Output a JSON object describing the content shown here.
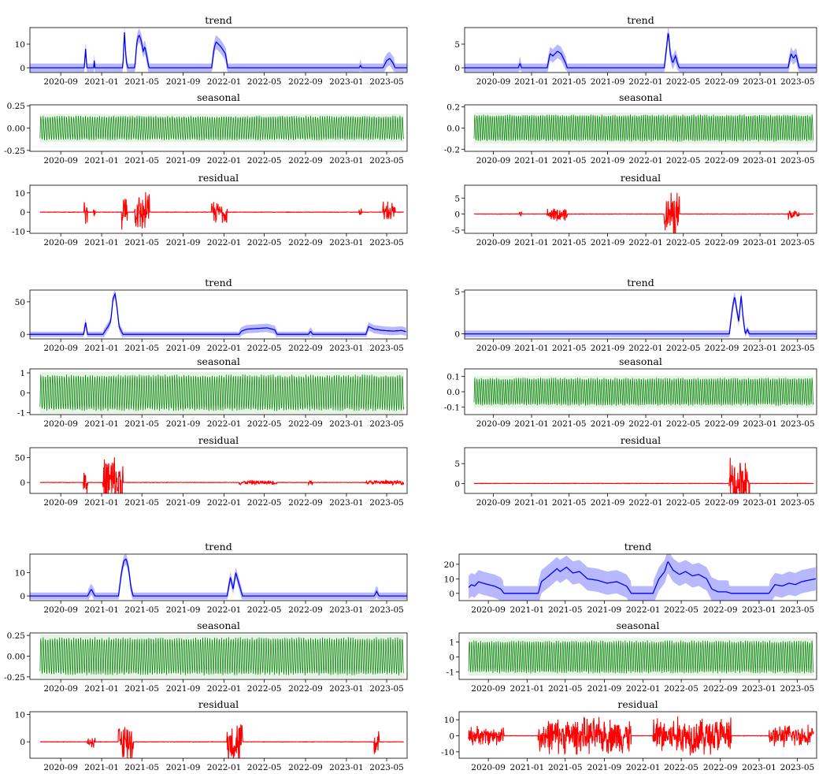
{
  "colors": {
    "trend": "#0000ff",
    "band": "#b8b8ff",
    "seasonal": "#008000",
    "seasonal_light": "#9ad29a",
    "residual": "#ff0000",
    "axis": "#000000"
  },
  "x_tick_labels": [
    "2020-09",
    "2021-01",
    "2021-05",
    "2021-09",
    "2022-01",
    "2022-05",
    "2022-09",
    "2023-01",
    "2023-05"
  ],
  "chart_data": [
    {
      "type": "line",
      "panel": "top-left",
      "x_range": [
        "2020-06-01",
        "2023-07-01"
      ],
      "trend": {
        "title": "trend",
        "ylim": [
          -2,
          17
        ],
        "yticks": [
          "0",
          "10"
        ],
        "ytick_values": [
          0,
          10
        ],
        "band_halfwidth": 1.8,
        "points": [
          [
            "2020-06-01",
            0
          ],
          [
            "2020-11-10",
            0
          ],
          [
            "2020-11-14",
            8
          ],
          [
            "2020-11-18",
            0
          ],
          [
            "2020-12-08",
            0
          ],
          [
            "2020-12-10",
            3
          ],
          [
            "2020-12-12",
            0
          ],
          [
            "2021-03-05",
            0
          ],
          [
            "2021-03-10",
            15
          ],
          [
            "2021-03-15",
            3
          ],
          [
            "2021-03-20",
            0
          ],
          [
            "2021-04-10",
            0
          ],
          [
            "2021-04-16",
            11
          ],
          [
            "2021-04-22",
            14
          ],
          [
            "2021-04-28",
            12
          ],
          [
            "2021-05-05",
            7
          ],
          [
            "2021-05-10",
            9
          ],
          [
            "2021-05-18",
            3
          ],
          [
            "2021-05-22",
            0
          ],
          [
            "2021-11-25",
            0
          ],
          [
            "2021-12-02",
            8
          ],
          [
            "2021-12-08",
            11
          ],
          [
            "2021-12-15",
            10
          ],
          [
            "2021-12-22",
            9
          ],
          [
            "2022-01-05",
            6
          ],
          [
            "2022-01-12",
            0
          ],
          [
            "2023-02-08",
            0
          ],
          [
            "2023-02-12",
            1
          ],
          [
            "2023-02-16",
            0
          ],
          [
            "2023-04-20",
            0
          ],
          [
            "2023-05-01",
            3
          ],
          [
            "2023-05-10",
            4
          ],
          [
            "2023-05-20",
            2
          ],
          [
            "2023-05-26",
            0
          ],
          [
            "2023-07-01",
            0
          ]
        ]
      },
      "seasonal": {
        "title": "seasonal",
        "ylim": [
          -0.26,
          0.26
        ],
        "yticks": [
          "0.25",
          "0.00",
          "-0.25"
        ],
        "ytick_values": [
          0.25,
          0,
          -0.25
        ],
        "amplitude": 0.15
      },
      "residual": {
        "title": "residual",
        "ylim": [
          -11,
          14
        ],
        "yticks": [
          "10",
          "0",
          "-10"
        ],
        "ytick_values": [
          10,
          0,
          -10
        ],
        "bursts": [
          [
            "2020-11-10",
            "2020-11-20",
            7
          ],
          [
            "2020-12-08",
            "2020-12-12",
            4
          ],
          [
            "2021-03-02",
            "2021-03-18",
            10
          ],
          [
            "2021-04-10",
            "2021-05-24",
            12
          ],
          [
            "2021-11-25",
            "2022-01-12",
            7
          ],
          [
            "2023-02-08",
            "2023-02-16",
            3
          ],
          [
            "2023-04-20",
            "2023-05-26",
            7
          ]
        ]
      }
    },
    {
      "type": "line",
      "panel": "top-right",
      "x_range": [
        "2020-06-01",
        "2023-07-01"
      ],
      "trend": {
        "title": "trend",
        "ylim": [
          -1,
          8.5
        ],
        "yticks": [
          "0",
          "5"
        ],
        "ytick_values": [
          0,
          5
        ],
        "band_halfwidth": 0.9,
        "points": [
          [
            "2020-06-01",
            0
          ],
          [
            "2020-11-20",
            0
          ],
          [
            "2020-11-25",
            1
          ],
          [
            "2020-11-30",
            0
          ],
          [
            "2021-02-20",
            0
          ],
          [
            "2021-03-01",
            3
          ],
          [
            "2021-03-10",
            2.5
          ],
          [
            "2021-03-25",
            3.5
          ],
          [
            "2021-04-05",
            3
          ],
          [
            "2021-04-20",
            1
          ],
          [
            "2021-04-25",
            0
          ],
          [
            "2022-03-01",
            0
          ],
          [
            "2022-03-08",
            4
          ],
          [
            "2022-03-14",
            7.8
          ],
          [
            "2022-03-20",
            3
          ],
          [
            "2022-03-28",
            1
          ],
          [
            "2022-04-06",
            2.5
          ],
          [
            "2022-04-12",
            1
          ],
          [
            "2022-04-18",
            0
          ],
          [
            "2023-04-01",
            0
          ],
          [
            "2023-04-10",
            3
          ],
          [
            "2023-04-18",
            2
          ],
          [
            "2023-04-26",
            2.8
          ],
          [
            "2023-05-06",
            0
          ],
          [
            "2023-07-01",
            0
          ]
        ]
      },
      "seasonal": {
        "title": "seasonal",
        "ylim": [
          -0.22,
          0.22
        ],
        "yticks": [
          "0.2",
          "0.0",
          "-0.2"
        ],
        "ytick_values": [
          0.2,
          0,
          -0.2
        ],
        "amplitude": 0.14
      },
      "residual": {
        "title": "residual",
        "ylim": [
          -6,
          9
        ],
        "yticks": [
          "5",
          "0",
          "-5"
        ],
        "ytick_values": [
          5,
          0,
          -5
        ],
        "bursts": [
          [
            "2020-11-20",
            "2020-11-30",
            1
          ],
          [
            "2021-02-20",
            "2021-04-25",
            2.5
          ],
          [
            "2022-03-01",
            "2022-04-18",
            8
          ],
          [
            "2023-04-01",
            "2023-05-06",
            2
          ]
        ]
      }
    },
    {
      "type": "line",
      "panel": "middle-left",
      "x_range": [
        "2020-06-01",
        "2023-07-01"
      ],
      "trend": {
        "title": "trend",
        "ylim": [
          -7,
          68
        ],
        "yticks": [
          "0",
          "50"
        ],
        "ytick_values": [
          0,
          50
        ],
        "band_halfwidth": 4,
        "points": [
          [
            "2020-06-01",
            0
          ],
          [
            "2020-11-08",
            0
          ],
          [
            "2020-11-14",
            18
          ],
          [
            "2020-11-20",
            0
          ],
          [
            "2021-01-05",
            0
          ],
          [
            "2021-01-12",
            6
          ],
          [
            "2021-01-20",
            12
          ],
          [
            "2021-01-28",
            20
          ],
          [
            "2021-02-04",
            55
          ],
          [
            "2021-02-10",
            62
          ],
          [
            "2021-02-16",
            40
          ],
          [
            "2021-02-22",
            12
          ],
          [
            "2021-03-05",
            0
          ],
          [
            "2022-02-15",
            0
          ],
          [
            "2022-02-22",
            5
          ],
          [
            "2022-03-10",
            8
          ],
          [
            "2022-04-10",
            9
          ],
          [
            "2022-05-10",
            10
          ],
          [
            "2022-06-01",
            7
          ],
          [
            "2022-06-08",
            0
          ],
          [
            "2022-09-10",
            0
          ],
          [
            "2022-09-16",
            5
          ],
          [
            "2022-09-22",
            0
          ],
          [
            "2023-02-28",
            0
          ],
          [
            "2023-03-08",
            12
          ],
          [
            "2023-03-25",
            8
          ],
          [
            "2023-04-20",
            6
          ],
          [
            "2023-05-20",
            5
          ],
          [
            "2023-06-15",
            6
          ],
          [
            "2023-06-28",
            4
          ]
        ]
      },
      "seasonal": {
        "title": "seasonal",
        "ylim": [
          -1.1,
          1.2
        ],
        "yticks": [
          "1",
          "0",
          "-1"
        ],
        "ytick_values": [
          1,
          0,
          -1
        ],
        "amplitude": 1.0
      },
      "residual": {
        "title": "residual",
        "ylim": [
          -22,
          70
        ],
        "yticks": [
          "50",
          "0"
        ],
        "ytick_values": [
          50,
          0
        ],
        "bursts": [
          [
            "2020-11-08",
            "2020-11-20",
            30
          ],
          [
            "2021-01-05",
            "2021-03-05",
            65
          ],
          [
            "2022-02-15",
            "2022-06-08",
            5
          ],
          [
            "2022-09-10",
            "2022-09-22",
            6
          ],
          [
            "2023-02-28",
            "2023-06-28",
            5
          ]
        ]
      }
    },
    {
      "type": "line",
      "panel": "middle-right",
      "x_range": [
        "2020-06-01",
        "2023-07-01"
      ],
      "trend": {
        "title": "trend",
        "ylim": [
          -0.6,
          5.2
        ],
        "yticks": [
          "0",
          "5"
        ],
        "ytick_values": [
          0,
          5
        ],
        "band_halfwidth": 0.4,
        "points": [
          [
            "2020-06-01",
            0
          ],
          [
            "2022-09-25",
            0
          ],
          [
            "2022-10-05",
            3
          ],
          [
            "2022-10-12",
            4.5
          ],
          [
            "2022-10-18",
            3
          ],
          [
            "2022-10-25",
            1.5
          ],
          [
            "2022-11-02",
            4.5
          ],
          [
            "2022-11-08",
            2
          ],
          [
            "2022-11-15",
            0
          ],
          [
            "2022-11-22",
            0.5
          ],
          [
            "2022-11-28",
            0
          ],
          [
            "2023-07-01",
            0
          ]
        ]
      },
      "seasonal": {
        "title": "seasonal",
        "ylim": [
          -0.15,
          0.15
        ],
        "yticks": [
          "0.1",
          "0.0",
          "-0.1"
        ],
        "ytick_values": [
          0.1,
          0,
          -0.1
        ],
        "amplitude": 0.1
      },
      "residual": {
        "title": "residual",
        "ylim": [
          -2.5,
          9
        ],
        "yticks": [
          "5",
          "0"
        ],
        "ytick_values": [
          5,
          0
        ],
        "bursts": [
          [
            "2022-09-25",
            "2022-11-28",
            8
          ]
        ]
      }
    },
    {
      "type": "line",
      "panel": "bottom-left",
      "x_range": [
        "2020-06-01",
        "2023-07-01"
      ],
      "trend": {
        "title": "trend",
        "ylim": [
          -2,
          18
        ],
        "yticks": [
          "0",
          "10"
        ],
        "ytick_values": [
          0,
          10
        ],
        "band_halfwidth": 1.5,
        "points": [
          [
            "2020-06-01",
            0
          ],
          [
            "2020-11-20",
            0
          ],
          [
            "2020-12-01",
            3
          ],
          [
            "2020-12-12",
            0
          ],
          [
            "2021-02-20",
            0
          ],
          [
            "2021-03-01",
            10
          ],
          [
            "2021-03-08",
            15
          ],
          [
            "2021-03-15",
            16
          ],
          [
            "2021-03-22",
            12
          ],
          [
            "2021-03-30",
            3
          ],
          [
            "2021-04-05",
            0
          ],
          [
            "2021-12-20",
            0
          ],
          [
            "2022-01-10",
            0
          ],
          [
            "2022-01-20",
            8
          ],
          [
            "2022-01-28",
            3
          ],
          [
            "2022-02-05",
            10
          ],
          [
            "2022-02-15",
            5
          ],
          [
            "2022-02-25",
            0
          ],
          [
            "2023-03-25",
            0
          ],
          [
            "2023-04-01",
            2
          ],
          [
            "2023-04-08",
            0
          ],
          [
            "2023-07-01",
            0
          ]
        ]
      },
      "seasonal": {
        "title": "seasonal",
        "ylim": [
          -0.28,
          0.28
        ],
        "yticks": [
          "0.25",
          "0.00",
          "-0.25"
        ],
        "ytick_values": [
          0.25,
          0,
          -0.25
        ],
        "amplitude": 0.25
      },
      "residual": {
        "title": "residual",
        "ylim": [
          -6,
          11
        ],
        "yticks": [
          "10",
          "0"
        ],
        "ytick_values": [
          10,
          0
        ],
        "bursts": [
          [
            "2020-11-20",
            "2020-12-12",
            3
          ],
          [
            "2021-02-20",
            "2021-04-05",
            9
          ],
          [
            "2022-01-10",
            "2022-02-25",
            9
          ],
          [
            "2023-03-25",
            "2023-04-08",
            10
          ]
        ]
      }
    },
    {
      "type": "line",
      "panel": "bottom-right",
      "x_range": [
        "2020-06-01",
        "2023-07-01"
      ],
      "trend": {
        "title": "trend",
        "ylim": [
          -5,
          27
        ],
        "yticks": [
          "20",
          "10",
          "0"
        ],
        "ytick_values": [
          20,
          10,
          0
        ],
        "band_halfwidth": 5,
        "points": [
          [
            "2020-07-01",
            4
          ],
          [
            "2020-07-10",
            6
          ],
          [
            "2020-07-20",
            5
          ],
          [
            "2020-08-01",
            8
          ],
          [
            "2020-08-15",
            7
          ],
          [
            "2020-09-01",
            6
          ],
          [
            "2020-09-20",
            5
          ],
          [
            "2020-10-10",
            3
          ],
          [
            "2020-10-20",
            0
          ],
          [
            "2021-02-05",
            0
          ],
          [
            "2021-02-15",
            8
          ],
          [
            "2021-03-10",
            12
          ],
          [
            "2021-04-05",
            17
          ],
          [
            "2021-04-15",
            15
          ],
          [
            "2021-05-05",
            18
          ],
          [
            "2021-05-25",
            14
          ],
          [
            "2021-06-15",
            15
          ],
          [
            "2021-07-10",
            10
          ],
          [
            "2021-08-10",
            9
          ],
          [
            "2021-09-10",
            7
          ],
          [
            "2021-10-10",
            8
          ],
          [
            "2021-11-10",
            5
          ],
          [
            "2021-11-25",
            0
          ],
          [
            "2022-02-01",
            0
          ],
          [
            "2022-02-20",
            10
          ],
          [
            "2022-03-10",
            15
          ],
          [
            "2022-03-20",
            22
          ],
          [
            "2022-04-05",
            16
          ],
          [
            "2022-04-25",
            13
          ],
          [
            "2022-05-15",
            15
          ],
          [
            "2022-06-05",
            12
          ],
          [
            "2022-06-25",
            13
          ],
          [
            "2022-07-20",
            10
          ],
          [
            "2022-08-05",
            3
          ],
          [
            "2022-08-25",
            1
          ],
          [
            "2022-09-20",
            1
          ],
          [
            "2022-10-05",
            0
          ],
          [
            "2023-02-01",
            0
          ],
          [
            "2023-02-20",
            6
          ],
          [
            "2023-03-15",
            5
          ],
          [
            "2023-04-05",
            7
          ],
          [
            "2023-04-25",
            6
          ],
          [
            "2023-05-15",
            8
          ],
          [
            "2023-06-05",
            9
          ],
          [
            "2023-06-28",
            10
          ]
        ]
      },
      "seasonal": {
        "title": "seasonal",
        "ylim": [
          -1.5,
          1.6
        ],
        "yticks": [
          "1",
          "0",
          "-1"
        ],
        "ytick_values": [
          1,
          0,
          -1
        ],
        "amplitude": 1.2
      },
      "residual": {
        "title": "residual",
        "ylim": [
          -14,
          15
        ],
        "yticks": [
          "10",
          "0",
          "-10"
        ],
        "ytick_values": [
          10,
          0,
          -10
        ],
        "bursts": [
          [
            "2020-07-01",
            "2020-10-20",
            7
          ],
          [
            "2021-02-05",
            "2021-11-25",
            13
          ],
          [
            "2022-02-01",
            "2022-10-05",
            14
          ],
          [
            "2023-02-01",
            "2023-06-28",
            8
          ]
        ]
      }
    }
  ]
}
